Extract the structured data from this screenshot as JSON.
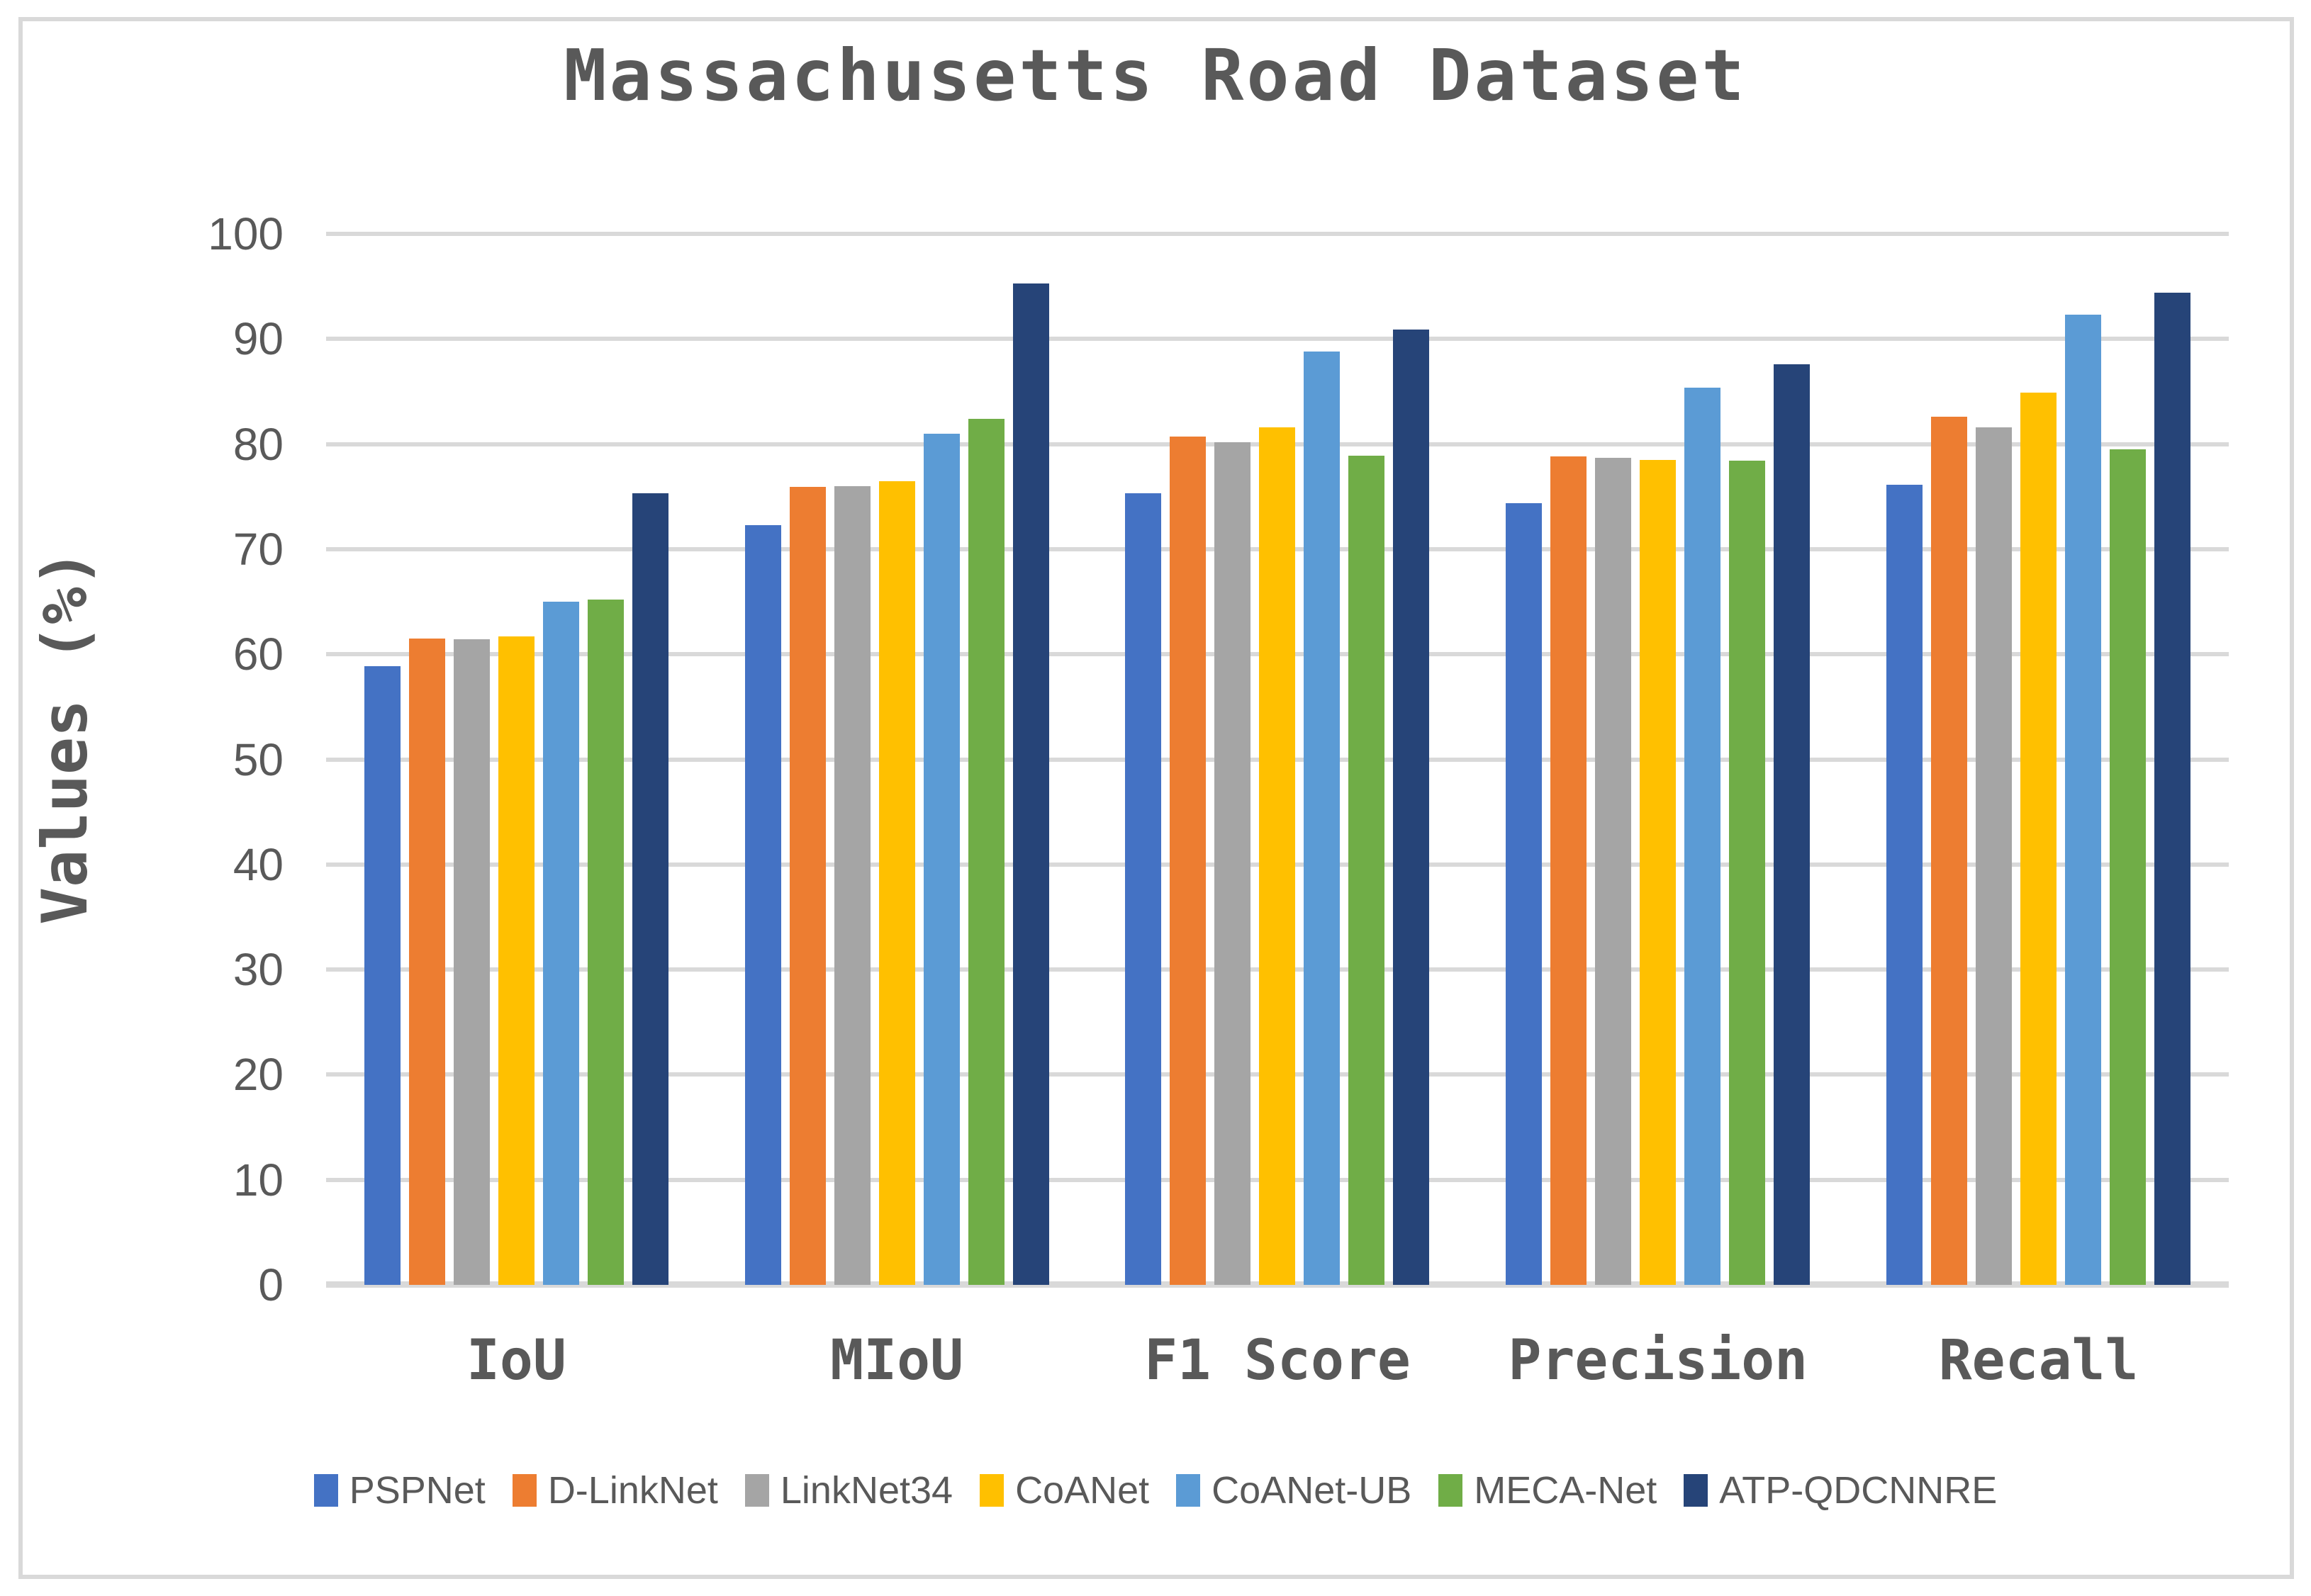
{
  "title": "Massachusetts Road Dataset",
  "colors": {
    "text": "#595959",
    "gridline": "#D9D9D9",
    "border": "#D9D9D9",
    "background": "#FFFFFF"
  },
  "chart_data": {
    "type": "bar",
    "title": "Massachusetts Road Dataset",
    "xlabel": "",
    "ylabel": "Values (%)",
    "ylim": [
      0,
      100
    ],
    "ytick_step": 10,
    "grid": true,
    "legend_position": "bottom",
    "categories": [
      "IoU",
      "MIoU",
      "F1 Score",
      "Precision",
      "Recall"
    ],
    "series": [
      {
        "name": "PSPNet",
        "color": "#4472C4",
        "values": [
          58.9,
          72.3,
          75.3,
          74.4,
          76.1
        ]
      },
      {
        "name": "D-LinkNet",
        "color": "#ED7D31",
        "values": [
          61.5,
          75.9,
          80.7,
          78.8,
          82.6
        ]
      },
      {
        "name": "LinkNet34",
        "color": "#A5A5A5",
        "values": [
          61.4,
          76.0,
          80.2,
          78.7,
          81.6
        ]
      },
      {
        "name": "CoANet",
        "color": "#FFC000",
        "values": [
          61.7,
          76.5,
          81.6,
          78.5,
          84.9
        ]
      },
      {
        "name": "CoANet-UB",
        "color": "#5B9BD5",
        "values": [
          65.0,
          81.0,
          88.8,
          85.4,
          92.3
        ]
      },
      {
        "name": "MECA-Net",
        "color": "#70AD47",
        "values": [
          65.2,
          82.4,
          78.9,
          78.4,
          79.5
        ]
      },
      {
        "name": "ATP-QDCNNRE",
        "color": "#264478",
        "values": [
          75.3,
          95.3,
          90.9,
          87.6,
          94.4
        ]
      }
    ]
  }
}
